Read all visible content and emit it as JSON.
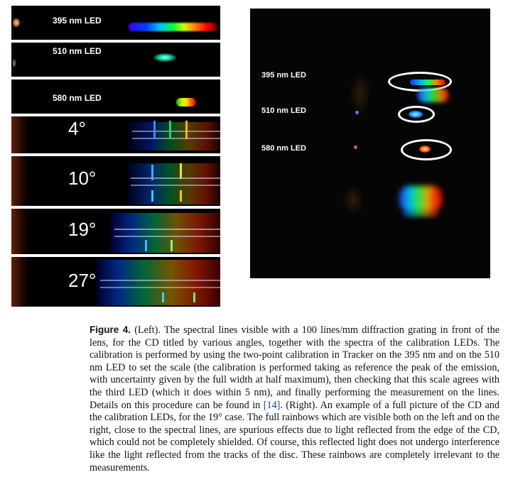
{
  "left_panels": {
    "led395": {
      "label": "395 nm LED"
    },
    "led510": {
      "label": "510 nm LED"
    },
    "led580": {
      "label": "580 nm LED"
    },
    "angle4": {
      "label": "4°"
    },
    "angle10": {
      "label": "10°"
    },
    "angle19": {
      "label": "19°"
    },
    "angle27": {
      "label": "27°"
    }
  },
  "right_photo": {
    "labels": {
      "led395": "395 nm LED",
      "led510": "510 nm LED",
      "led580": "580 nm LED"
    }
  },
  "caption": {
    "figure_label": "Figure 4.",
    "text_part1": " (Left). The spectral lines visible with a 100 lines/mm diffraction grating in front of the lens, for the CD titled by various angles, together with the spectra of the calibration LEDs. The calibration is performed by using the two-point calibration in Tracker on the 395 nm and on the 510 nm LED to set the scale (the calibration is performed taking as reference the peak of the emission, with uncertainty given by the full width at half maximum), then checking that this scale agrees with the third LED (which it does within 5 nm), and finally performing the measurement on the lines. Details on this procedure can be found in ",
    "ref": "[14]",
    "text_part2": ". (Right). An example of a full picture of the CD and the calibration LEDs, for the 19° case. The full rainbows which are visible both on the left and on the right, close to the spectral lines, are spurious effects due to light reflected from the edge of the CD, which could not be completely shielded. Of course, this reflected light does not undergo interference like the light reflected from the tracks of the disc. These rainbows are completely irrelevant to the measurements."
  }
}
